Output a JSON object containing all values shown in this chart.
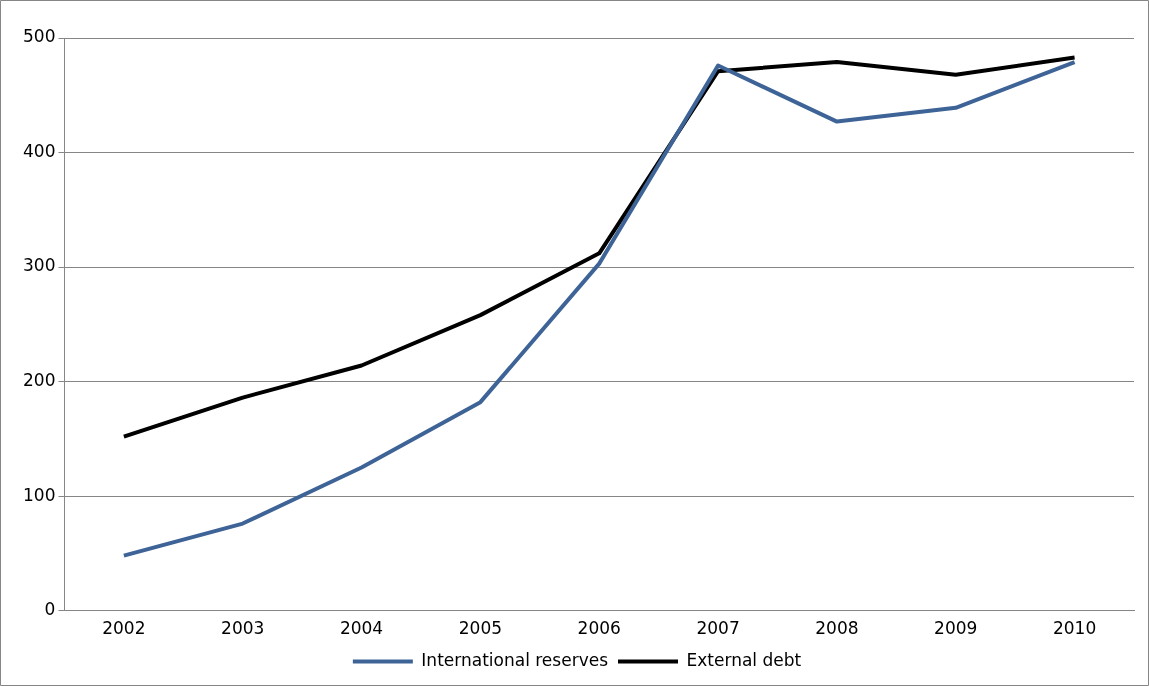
{
  "chart_data": {
    "type": "line",
    "categories": [
      "2002",
      "2003",
      "2004",
      "2005",
      "2006",
      "2007",
      "2008",
      "2009",
      "2010"
    ],
    "series": [
      {
        "name": "International reserves",
        "color": "#3e6497",
        "values": [
          48,
          76,
          125,
          182,
          303,
          476,
          427,
          439,
          479
        ]
      },
      {
        "name": "External debt",
        "color": "#000000",
        "values": [
          152,
          186,
          214,
          258,
          312,
          471,
          479,
          468,
          483
        ]
      }
    ],
    "ylim": [
      0,
      500
    ],
    "yticks": [
      0,
      100,
      200,
      300,
      400,
      500
    ],
    "grid": "y",
    "legend": "bottom",
    "marker": "none",
    "line_style": "solid"
  }
}
